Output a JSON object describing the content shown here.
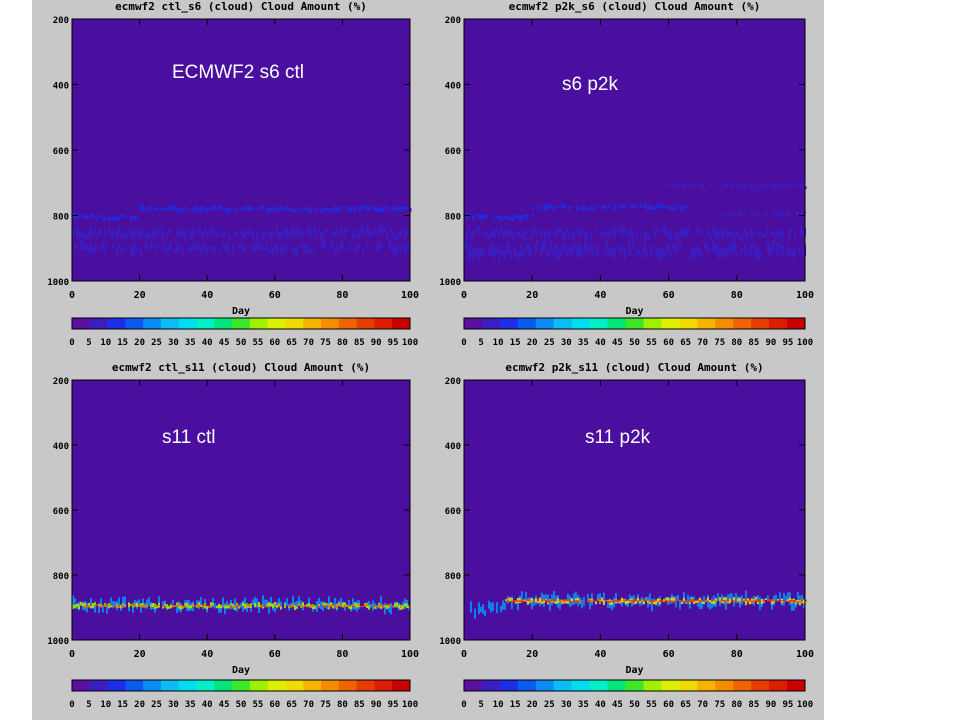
{
  "colorbar": {
    "labels": [
      "0",
      "5",
      "10",
      "15",
      "20",
      "25",
      "30",
      "35",
      "40",
      "45",
      "50",
      "55",
      "60",
      "65",
      "70",
      "75",
      "80",
      "85",
      "90",
      "95",
      "100"
    ],
    "colors": [
      "#5a0fa0",
      "#3c1ec0",
      "#1e2ee8",
      "#0a5af0",
      "#0a8cf5",
      "#0abef5",
      "#00dcf0",
      "#00f0c8",
      "#00e678",
      "#3ce628",
      "#a0f000",
      "#dcf000",
      "#f0dc00",
      "#f5b400",
      "#f58c00",
      "#f06400",
      "#e63c00",
      "#dc1e00",
      "#c80000"
    ]
  },
  "colors": {
    "background": "#c8c8c8",
    "plot_background": "#4b0fa0",
    "overlay_text": "#ffffff"
  },
  "chart_data": [
    {
      "type": "heatmap",
      "title": "ecmwf2 ctl_s6  (cloud)  Cloud Amount (%)",
      "overlay_label": "ECMWF2 s6 ctl",
      "xlabel": "Day",
      "ylabel": "",
      "xlim": [
        0,
        100
      ],
      "ylim": [
        1000,
        200
      ],
      "xticks": [
        "0",
        "20",
        "40",
        "60",
        "80",
        "100"
      ],
      "yticks": [
        "200",
        "400",
        "600",
        "800",
        "1000"
      ],
      "cloud_bands": [
        {
          "x": [
            0,
            20
          ],
          "y": [
            795,
            815
          ],
          "level": 2
        },
        {
          "x": [
            20,
            100
          ],
          "y": [
            770,
            790
          ],
          "level": 2
        },
        {
          "x": [
            0,
            100
          ],
          "y": [
            835,
            875
          ],
          "level": 1
        },
        {
          "x": [
            0,
            100
          ],
          "y": [
            880,
            920
          ],
          "level": 1
        }
      ]
    },
    {
      "type": "heatmap",
      "title": "ecmwf2 p2k_s6  (cloud)  Cloud Amount (%)",
      "overlay_label": "s6 p2k",
      "xlabel": "Day",
      "ylabel": "",
      "xlim": [
        0,
        100
      ],
      "ylim": [
        1000,
        200
      ],
      "xticks": [
        "0",
        "20",
        "40",
        "60",
        "80",
        "100"
      ],
      "yticks": [
        "200",
        "400",
        "600",
        "800",
        "1000"
      ],
      "cloud_bands": [
        {
          "x": [
            0,
            20
          ],
          "y": [
            795,
            815
          ],
          "level": 2
        },
        {
          "x": [
            20,
            65
          ],
          "y": [
            765,
            785
          ],
          "level": 2
        },
        {
          "x": [
            60,
            100
          ],
          "y": [
            700,
            720
          ],
          "level": 1
        },
        {
          "x": [
            75,
            100
          ],
          "y": [
            785,
            805
          ],
          "level": 1
        },
        {
          "x": [
            0,
            100
          ],
          "y": [
            835,
            875
          ],
          "level": 1
        },
        {
          "x": [
            0,
            100
          ],
          "y": [
            880,
            935
          ],
          "level": 1
        }
      ]
    },
    {
      "type": "heatmap",
      "title": "ecmwf2 ctl_s11  (cloud)  Cloud Amount (%)",
      "overlay_label": "s11 ctl",
      "xlabel": "Day",
      "ylabel": "",
      "xlim": [
        0,
        100
      ],
      "ylim": [
        1000,
        200
      ],
      "xticks": [
        "0",
        "20",
        "40",
        "60",
        "80",
        "100"
      ],
      "yticks": [
        "200",
        "400",
        "600",
        "800",
        "1000"
      ],
      "cloud_bands": [
        {
          "x": [
            0,
            100
          ],
          "y": [
            870,
            915
          ],
          "level": 4
        },
        {
          "x": [
            0,
            100
          ],
          "y": [
            885,
            905
          ],
          "level": 10
        },
        {
          "x": [
            0,
            100
          ],
          "y": [
            890,
            900
          ],
          "level": 15
        }
      ]
    },
    {
      "type": "heatmap",
      "title": "ecmwf2 p2k_s11  (cloud)  Cloud Amount (%)",
      "overlay_label": "s11 p2k",
      "xlabel": "Day",
      "ylabel": "",
      "xlim": [
        0,
        100
      ],
      "ylim": [
        1000,
        200
      ],
      "xticks": [
        "0",
        "20",
        "40",
        "60",
        "80",
        "100"
      ],
      "yticks": [
        "200",
        "400",
        "600",
        "800",
        "1000"
      ],
      "cloud_bands": [
        {
          "x": [
            0,
            12
          ],
          "y": [
            880,
            930
          ],
          "level": 4
        },
        {
          "x": [
            12,
            100
          ],
          "y": [
            855,
            905
          ],
          "level": 4
        },
        {
          "x": [
            12,
            100
          ],
          "y": [
            870,
            890
          ],
          "level": 12
        },
        {
          "x": [
            12,
            100
          ],
          "y": [
            875,
            885
          ],
          "level": 16
        }
      ]
    }
  ]
}
